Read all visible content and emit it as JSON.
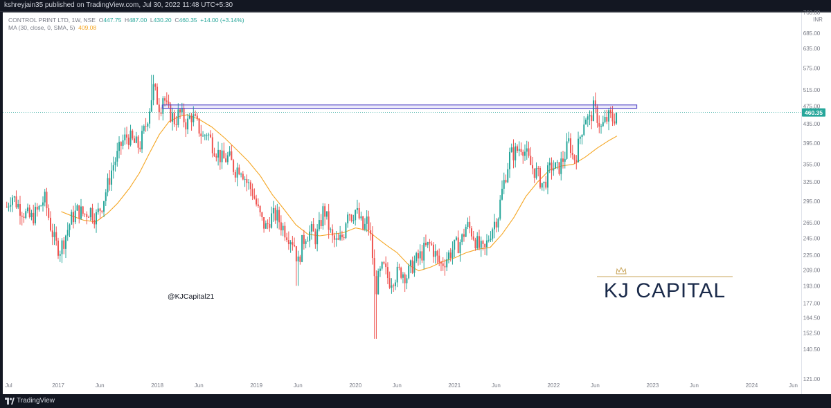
{
  "header": {
    "publish_line": "kshreyjain35 published on TradingView.com, Jul 30, 2022 11:48 UTC+5:30"
  },
  "legend": {
    "symbol": "CONTROL PRINT LTD, 1W, NSE",
    "o_label": "O",
    "o_value": "447.75",
    "h_label": "H",
    "h_value": "487.00",
    "l_label": "L",
    "l_value": "430.20",
    "c_label": "C",
    "c_value": "460.35",
    "change": "+14.00 (+3.14%)",
    "ma_label": "MA (30, close, 0, SMA, 5)",
    "ma_value": "409.08"
  },
  "watermark": {
    "handle": "@KJCapital21",
    "brand": "KJ CAPITAL"
  },
  "footer": {
    "brand": "TradingView"
  },
  "colors": {
    "up": "#26a69a",
    "down": "#ef5350",
    "ma": "#f5a623",
    "resistance": "#5b4fc9",
    "brand": "#1a2a4a",
    "gold": "#c9a55a"
  },
  "chart_data": {
    "type": "candlestick",
    "title": "CONTROL PRINT LTD, 1W, NSE",
    "currency_label": "INR",
    "y_scale": "log",
    "ylim": [
      121,
      760
    ],
    "y_ticks": [
      760.0,
      685.0,
      635.0,
      575.0,
      515.0,
      475.0,
      435.0,
      395.0,
      355.0,
      325.0,
      295.0,
      265.0,
      245.0,
      225.0,
      209.0,
      193.0,
      177.0,
      164.5,
      152.5,
      140.5,
      121.0
    ],
    "y_tick_labels": [
      "760.00",
      "685.00",
      "635.00",
      "575.00",
      "515.00",
      "475.00",
      "435.00",
      "395.00",
      "355.00",
      "325.00",
      "295.00",
      "265.00",
      "245.00",
      "225.00",
      "209.00",
      "193.00",
      "177.00",
      "164.50",
      "152.50",
      "140.50",
      "121.00"
    ],
    "x_ticks": [
      {
        "label": "Jul",
        "t": 2016.5
      },
      {
        "label": "2017",
        "t": 2017.0
      },
      {
        "label": "Jun",
        "t": 2017.42
      },
      {
        "label": "2018",
        "t": 2018.0
      },
      {
        "label": "Jun",
        "t": 2018.42
      },
      {
        "label": "2019",
        "t": 2019.0
      },
      {
        "label": "Jun",
        "t": 2019.42
      },
      {
        "label": "2020",
        "t": 2020.0
      },
      {
        "label": "Jun",
        "t": 2020.42
      },
      {
        "label": "2021",
        "t": 2021.0
      },
      {
        "label": "Jun",
        "t": 2021.42
      },
      {
        "label": "2022",
        "t": 2022.0
      },
      {
        "label": "Jun",
        "t": 2022.42
      },
      {
        "label": "2023",
        "t": 2023.0
      },
      {
        "label": "Jun",
        "t": 2023.42
      },
      {
        "label": "2024",
        "t": 2024.0
      },
      {
        "label": "Jun",
        "t": 2024.42
      }
    ],
    "x_range": [
      2016.44,
      2024.5
    ],
    "last_price": 460.35,
    "last_price_label": "460.35",
    "resistance_band": [
      470,
      478
    ],
    "resistance_t": [
      2018.05,
      2022.84
    ],
    "price_path": [
      [
        2016.48,
        287
      ],
      [
        2016.53,
        305
      ],
      [
        2016.58,
        292
      ],
      [
        2016.66,
        278
      ],
      [
        2016.72,
        270
      ],
      [
        2016.8,
        282
      ],
      [
        2016.86,
        300
      ],
      [
        2016.92,
        262
      ],
      [
        2016.97,
        238
      ],
      [
        2017.02,
        232
      ],
      [
        2017.06,
        244
      ],
      [
        2017.1,
        258
      ],
      [
        2017.14,
        272
      ],
      [
        2017.2,
        282
      ],
      [
        2017.26,
        276
      ],
      [
        2017.32,
        283
      ],
      [
        2017.38,
        272
      ],
      [
        2017.44,
        290
      ],
      [
        2017.5,
        320
      ],
      [
        2017.55,
        352
      ],
      [
        2017.6,
        372
      ],
      [
        2017.64,
        395
      ],
      [
        2017.7,
        410
      ],
      [
        2017.76,
        395
      ],
      [
        2017.82,
        388
      ],
      [
        2017.88,
        428
      ],
      [
        2017.92,
        470
      ],
      [
        2017.96,
        520
      ],
      [
        2017.99,
        498
      ],
      [
        2018.03,
        468
      ],
      [
        2018.06,
        505
      ],
      [
        2018.1,
        465
      ],
      [
        2018.14,
        455
      ],
      [
        2018.18,
        440
      ],
      [
        2018.22,
        460
      ],
      [
        2018.26,
        448
      ],
      [
        2018.3,
        433
      ],
      [
        2018.34,
        455
      ],
      [
        2018.38,
        440
      ],
      [
        2018.42,
        425
      ],
      [
        2018.46,
        405
      ],
      [
        2018.5,
        418
      ],
      [
        2018.55,
        395
      ],
      [
        2018.6,
        380
      ],
      [
        2018.66,
        362
      ],
      [
        2018.72,
        368
      ],
      [
        2018.78,
        345
      ],
      [
        2018.84,
        352
      ],
      [
        2018.9,
        325
      ],
      [
        2018.96,
        310
      ],
      [
        2019.02,
        280
      ],
      [
        2019.06,
        265
      ],
      [
        2019.1,
        258
      ],
      [
        2019.14,
        272
      ],
      [
        2019.2,
        275
      ],
      [
        2019.26,
        260
      ],
      [
        2019.32,
        250
      ],
      [
        2019.38,
        240
      ],
      [
        2019.42,
        215
      ],
      [
        2019.46,
        238
      ],
      [
        2019.5,
        250
      ],
      [
        2019.56,
        253
      ],
      [
        2019.6,
        245
      ],
      [
        2019.64,
        260
      ],
      [
        2019.68,
        285
      ],
      [
        2019.72,
        265
      ],
      [
        2019.76,
        245
      ],
      [
        2019.82,
        238
      ],
      [
        2019.88,
        250
      ],
      [
        2019.92,
        285
      ],
      [
        2019.96,
        275
      ],
      [
        2020.0,
        282
      ],
      [
        2020.04,
        270
      ],
      [
        2020.08,
        255
      ],
      [
        2020.12,
        268
      ],
      [
        2020.16,
        240
      ],
      [
        2020.2,
        188
      ],
      [
        2020.24,
        203
      ],
      [
        2020.28,
        212
      ],
      [
        2020.34,
        198
      ],
      [
        2020.4,
        203
      ],
      [
        2020.46,
        208
      ],
      [
        2020.52,
        203
      ],
      [
        2020.58,
        215
      ],
      [
        2020.64,
        222
      ],
      [
        2020.7,
        232
      ],
      [
        2020.76,
        238
      ],
      [
        2020.82,
        222
      ],
      [
        2020.86,
        214
      ],
      [
        2020.92,
        222
      ],
      [
        2020.98,
        232
      ],
      [
        2021.04,
        238
      ],
      [
        2021.08,
        245
      ],
      [
        2021.12,
        262
      ],
      [
        2021.18,
        252
      ],
      [
        2021.24,
        235
      ],
      [
        2021.3,
        228
      ],
      [
        2021.36,
        252
      ],
      [
        2021.4,
        265
      ],
      [
        2021.44,
        275
      ],
      [
        2021.48,
        310
      ],
      [
        2021.52,
        340
      ],
      [
        2021.56,
        372
      ],
      [
        2021.62,
        378
      ],
      [
        2021.68,
        392
      ],
      [
        2021.72,
        375
      ],
      [
        2021.76,
        355
      ],
      [
        2021.82,
        342
      ],
      [
        2021.86,
        330
      ],
      [
        2021.9,
        318
      ],
      [
        2021.94,
        338
      ],
      [
        2021.98,
        352
      ],
      [
        2022.04,
        345
      ],
      [
        2022.08,
        358
      ],
      [
        2022.12,
        375
      ],
      [
        2022.16,
        400
      ],
      [
        2022.2,
        362
      ],
      [
        2022.24,
        380
      ],
      [
        2022.28,
        420
      ],
      [
        2022.32,
        455
      ],
      [
        2022.36,
        438
      ],
      [
        2022.4,
        470
      ],
      [
        2022.44,
        452
      ],
      [
        2022.48,
        425
      ],
      [
        2022.52,
        440
      ],
      [
        2022.56,
        450
      ],
      [
        2022.6,
        445
      ],
      [
        2022.64,
        460
      ]
    ],
    "ma_path": [
      [
        2017.03,
        280
      ],
      [
        2017.14,
        274
      ],
      [
        2017.26,
        268
      ],
      [
        2017.38,
        266
      ],
      [
        2017.5,
        278
      ],
      [
        2017.6,
        292
      ],
      [
        2017.72,
        315
      ],
      [
        2017.82,
        340
      ],
      [
        2017.92,
        375
      ],
      [
        2018.02,
        412
      ],
      [
        2018.12,
        440
      ],
      [
        2018.22,
        451
      ],
      [
        2018.3,
        455
      ],
      [
        2018.42,
        445
      ],
      [
        2018.55,
        428
      ],
      [
        2018.68,
        405
      ],
      [
        2018.8,
        382
      ],
      [
        2018.92,
        360
      ],
      [
        2019.04,
        335
      ],
      [
        2019.16,
        305
      ],
      [
        2019.28,
        283
      ],
      [
        2019.4,
        262
      ],
      [
        2019.52,
        250
      ],
      [
        2019.64,
        248
      ],
      [
        2019.76,
        250
      ],
      [
        2019.88,
        252
      ],
      [
        2020.0,
        258
      ],
      [
        2020.12,
        255
      ],
      [
        2020.22,
        245
      ],
      [
        2020.32,
        236
      ],
      [
        2020.42,
        228
      ],
      [
        2020.54,
        214
      ],
      [
        2020.64,
        208
      ],
      [
        2020.76,
        212
      ],
      [
        2020.88,
        218
      ],
      [
        2021.0,
        222
      ],
      [
        2021.12,
        228
      ],
      [
        2021.24,
        232
      ],
      [
        2021.36,
        234
      ],
      [
        2021.48,
        250
      ],
      [
        2021.6,
        272
      ],
      [
        2021.72,
        302
      ],
      [
        2021.84,
        325
      ],
      [
        2021.96,
        345
      ],
      [
        2022.08,
        352
      ],
      [
        2022.2,
        355
      ],
      [
        2022.32,
        368
      ],
      [
        2022.44,
        385
      ],
      [
        2022.56,
        400
      ],
      [
        2022.64,
        409
      ]
    ]
  }
}
